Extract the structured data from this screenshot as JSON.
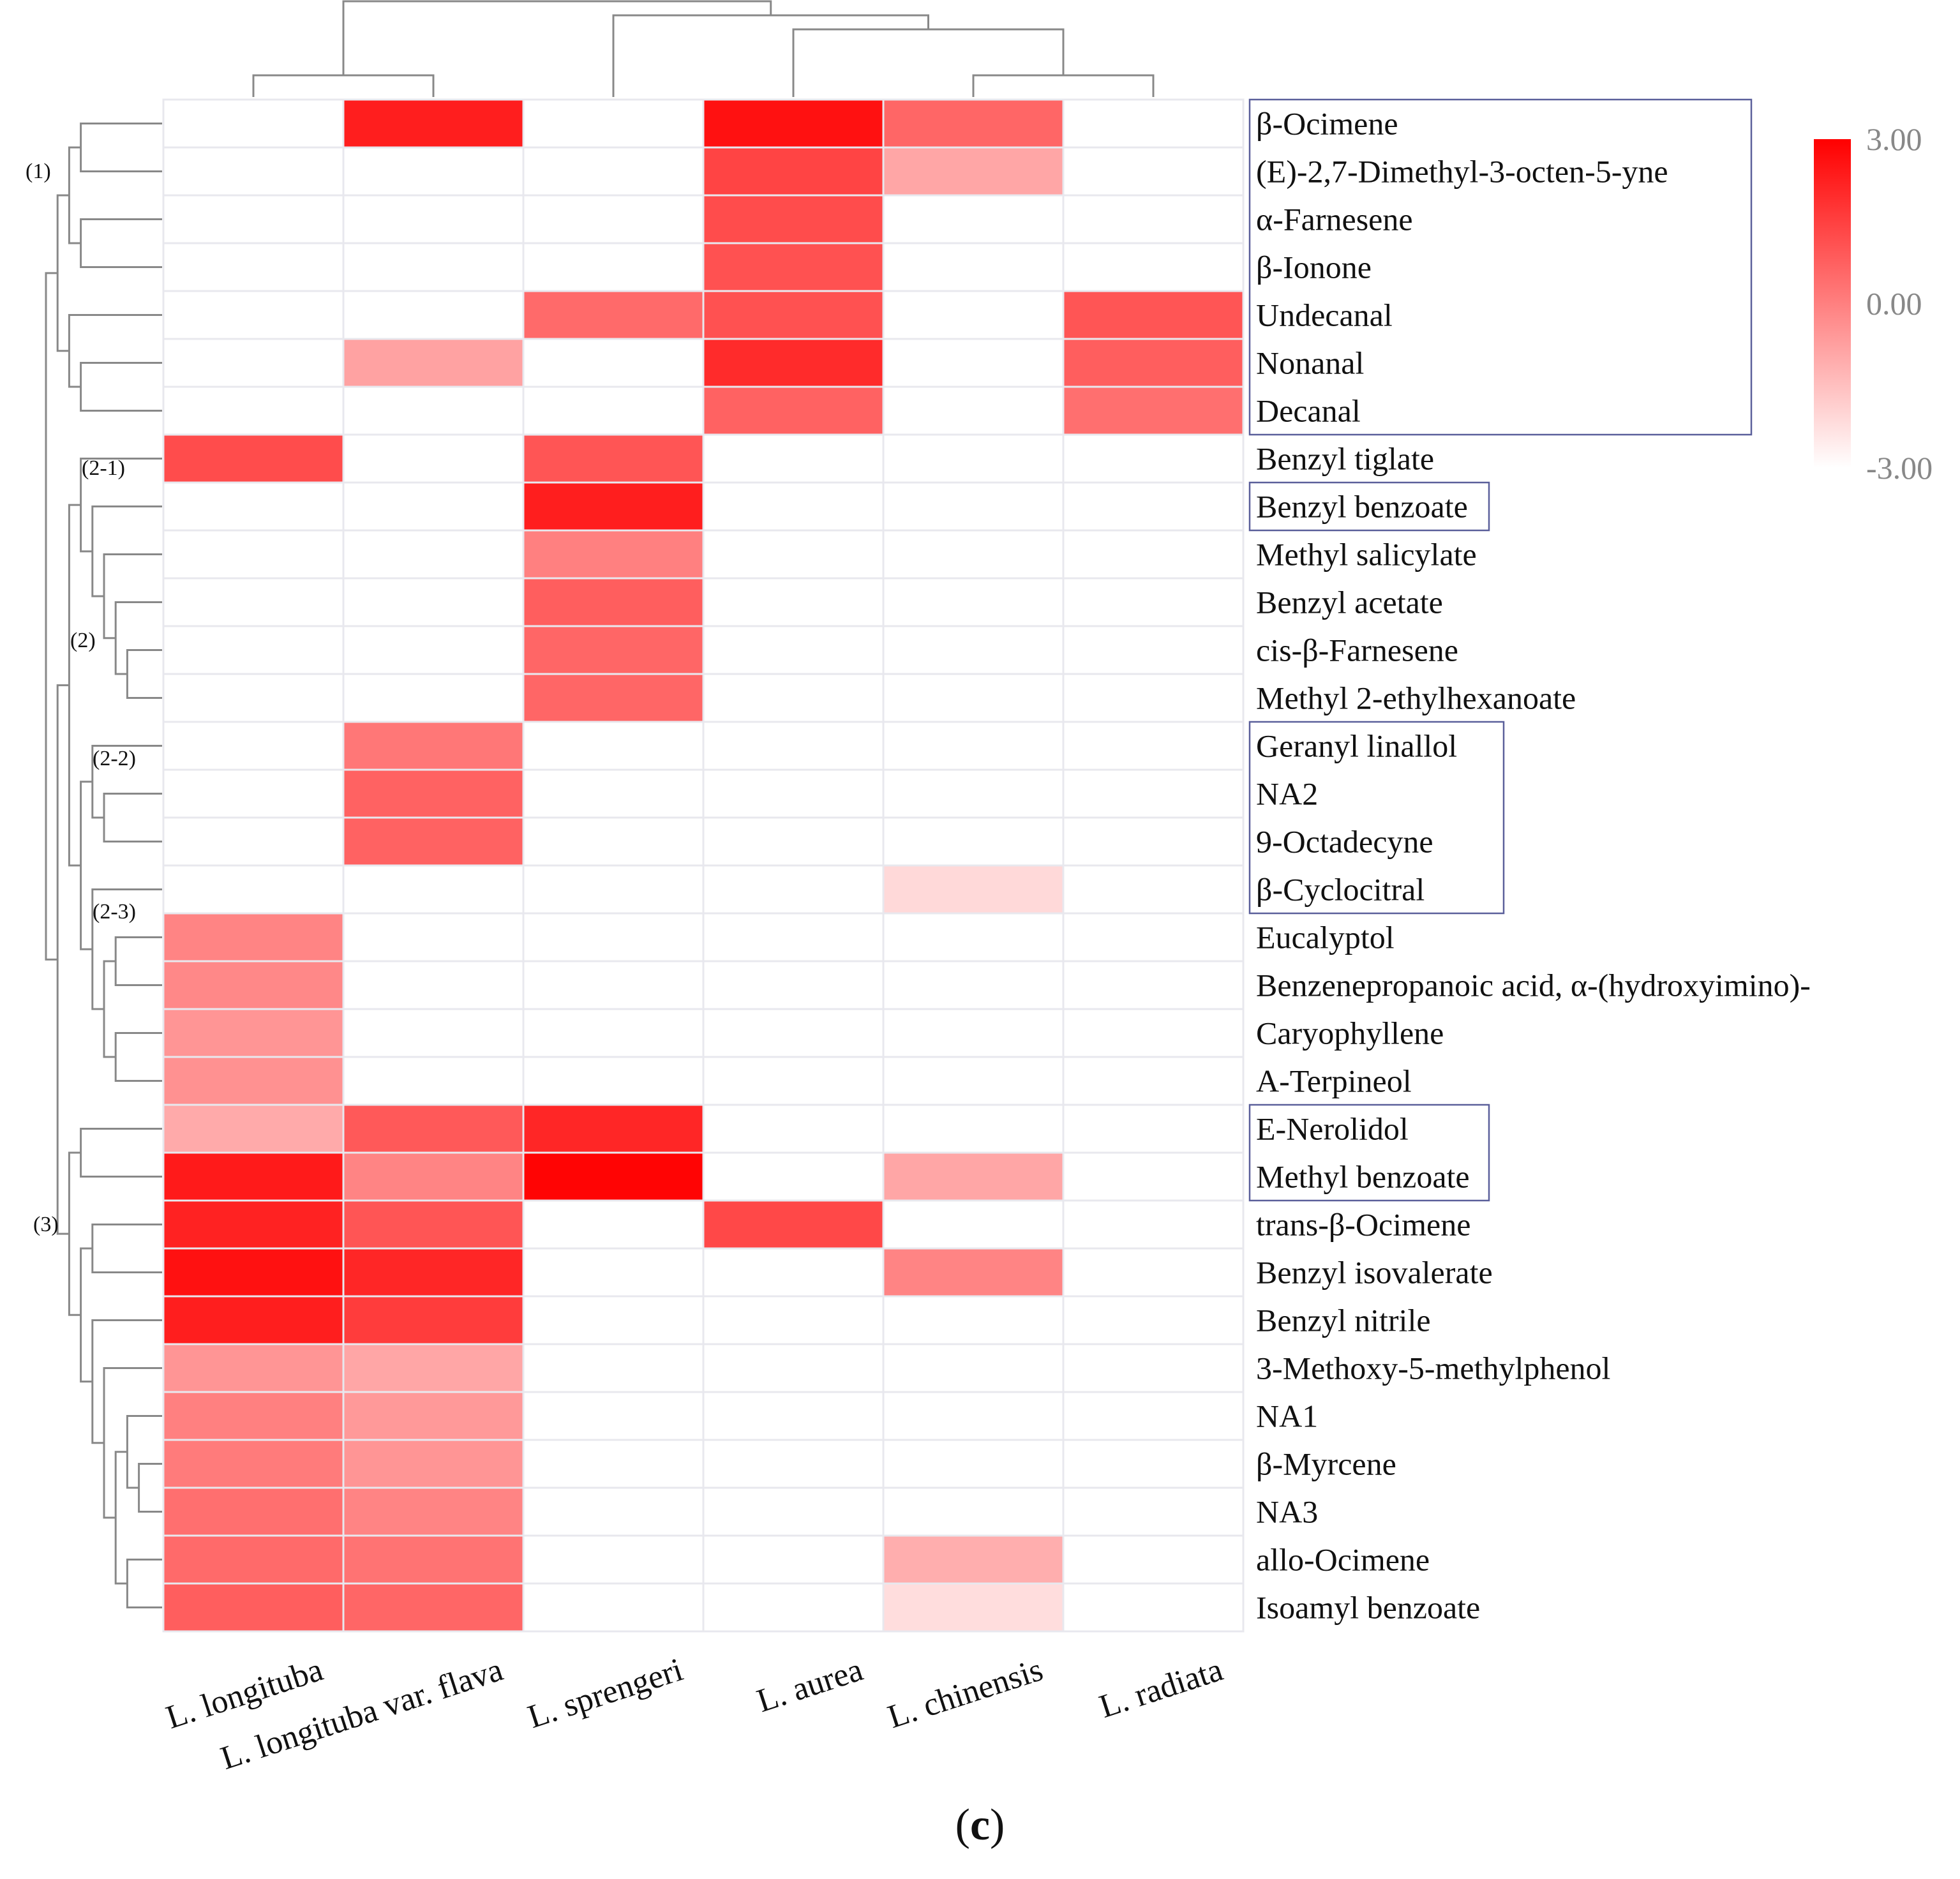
{
  "chart_data": {
    "type": "heatmap",
    "title": "",
    "xlabel": "",
    "ylabel": "",
    "panel_label": {
      "open": "(",
      "letter": "c",
      "close": ")"
    },
    "columns": [
      "L. longituba",
      "L. longituba var. flava",
      "L. sprengeri",
      "L. aurea",
      "L. chinensis",
      "L. radiata"
    ],
    "rows": [
      "β-Ocimene",
      "(E)-2,7-Dimethyl-3-octen-5-yne",
      "α-Farnesene",
      "β-Ionone",
      "Undecanal",
      "Nonanal",
      "Decanal",
      "Benzyl tiglate",
      "Benzyl benzoate",
      "Methyl salicylate",
      "Benzyl acetate",
      "cis-β-Farnesene",
      "Methyl 2-ethylhexanoate",
      "Geranyl linallol",
      "NA2",
      "9-Octadecyne",
      "β-Cyclocitral",
      "Eucalyptol",
      "Benzenepropanoic acid, α-(hydroxyimino)-",
      "Caryophyllene",
      "A-Terpineol",
      "E-Nerolidol",
      "Methyl benzoate",
      "trans-β-Ocimene",
      "Benzyl isovalerate",
      "Benzyl nitrile",
      "3-Methoxy-5-methylphenol",
      "NA1",
      "β-Myrcene",
      "NA3",
      "allo-Ocimene",
      "Isoamyl benzoate"
    ],
    "values": [
      [
        -3.0,
        2.3,
        -3.0,
        2.6,
        0.6,
        -3.0
      ],
      [
        -3.0,
        -3.0,
        -3.0,
        1.4,
        -0.9,
        -3.0
      ],
      [
        -3.0,
        -3.0,
        -3.0,
        1.2,
        -3.0,
        -3.0
      ],
      [
        -3.0,
        -3.0,
        -3.0,
        1.1,
        -3.0,
        -3.0
      ],
      [
        -3.0,
        -3.0,
        0.5,
        1.1,
        -3.0,
        1.0
      ],
      [
        -3.0,
        -0.8,
        -3.0,
        2.0,
        -3.0,
        0.8
      ],
      [
        -3.0,
        -3.0,
        -3.0,
        0.7,
        -3.0,
        0.4
      ],
      [
        1.2,
        -3.0,
        1.0,
        -3.0,
        -3.0,
        -3.0
      ],
      [
        -3.0,
        -3.0,
        2.3,
        -3.0,
        -3.0,
        -3.0
      ],
      [
        -3.0,
        -3.0,
        0.0,
        -3.0,
        -3.0,
        -3.0
      ],
      [
        -3.0,
        -3.0,
        0.8,
        -3.0,
        -3.0,
        -3.0
      ],
      [
        -3.0,
        -3.0,
        0.6,
        -3.0,
        -3.0,
        -3.0
      ],
      [
        -3.0,
        -3.0,
        0.6,
        -3.0,
        -3.0,
        -3.0
      ],
      [
        -3.0,
        0.2,
        -3.0,
        -3.0,
        -3.0,
        -3.0
      ],
      [
        -3.0,
        0.7,
        -3.0,
        -3.0,
        -3.0,
        -3.0
      ],
      [
        -3.0,
        0.7,
        -3.0,
        -3.0,
        -3.0,
        -3.0
      ],
      [
        -3.0,
        -3.0,
        -3.0,
        -3.0,
        -2.1,
        -3.0
      ],
      [
        -0.1,
        -3.0,
        -3.0,
        -3.0,
        -3.0,
        -3.0
      ],
      [
        -0.2,
        -3.0,
        -3.0,
        -3.0,
        -3.0,
        -3.0
      ],
      [
        -0.5,
        -3.0,
        -3.0,
        -3.0,
        -3.0,
        -3.0
      ],
      [
        -0.4,
        -3.0,
        -3.0,
        -3.0,
        -3.0,
        -3.0
      ],
      [
        -1.0,
        0.9,
        2.1,
        -3.0,
        -3.0,
        -3.0
      ],
      [
        2.4,
        -0.1,
        2.9,
        -3.0,
        -0.9,
        -3.0
      ],
      [
        2.2,
        1.0,
        -3.0,
        1.3,
        -3.0,
        -3.0
      ],
      [
        2.6,
        2.1,
        -3.0,
        -3.0,
        -0.1,
        -3.0
      ],
      [
        2.3,
        1.6,
        -3.0,
        -3.0,
        -3.0,
        -3.0
      ],
      [
        -0.5,
        -0.9,
        -3.0,
        -3.0,
        -3.0,
        -3.0
      ],
      [
        0.0,
        -0.6,
        -3.0,
        -3.0,
        -3.0,
        -3.0
      ],
      [
        0.1,
        -0.5,
        -3.0,
        -3.0,
        -3.0,
        -3.0
      ],
      [
        0.4,
        -0.1,
        -3.0,
        -3.0,
        -3.0,
        -3.0
      ],
      [
        0.5,
        0.3,
        -3.0,
        -3.0,
        -1.1,
        -3.0
      ],
      [
        0.8,
        0.6,
        -3.0,
        -3.0,
        -2.2,
        -3.0
      ]
    ],
    "color_scale": {
      "min": -3.0,
      "max": 3.0,
      "ticks": [
        "3.00",
        "0.00",
        "-3.00"
      ],
      "low_color": "#ffffff",
      "high_color": "#ff0000"
    },
    "cluster_labels": [
      {
        "label": "(1)",
        "rows": [
          0,
          6
        ]
      },
      {
        "label": "(2-1)",
        "rows": [
          7,
          12
        ]
      },
      {
        "label": "(2)",
        "rows": [
          7,
          20
        ]
      },
      {
        "label": "(2-2)",
        "rows": [
          13,
          16
        ]
      },
      {
        "label": "(2-3)",
        "rows": [
          17,
          20
        ]
      },
      {
        "label": "(3)",
        "rows": [
          21,
          31
        ]
      }
    ],
    "boxed_groups": [
      [
        0,
        6
      ],
      [
        8,
        8
      ],
      [
        13,
        16
      ],
      [
        21,
        22
      ]
    ]
  }
}
